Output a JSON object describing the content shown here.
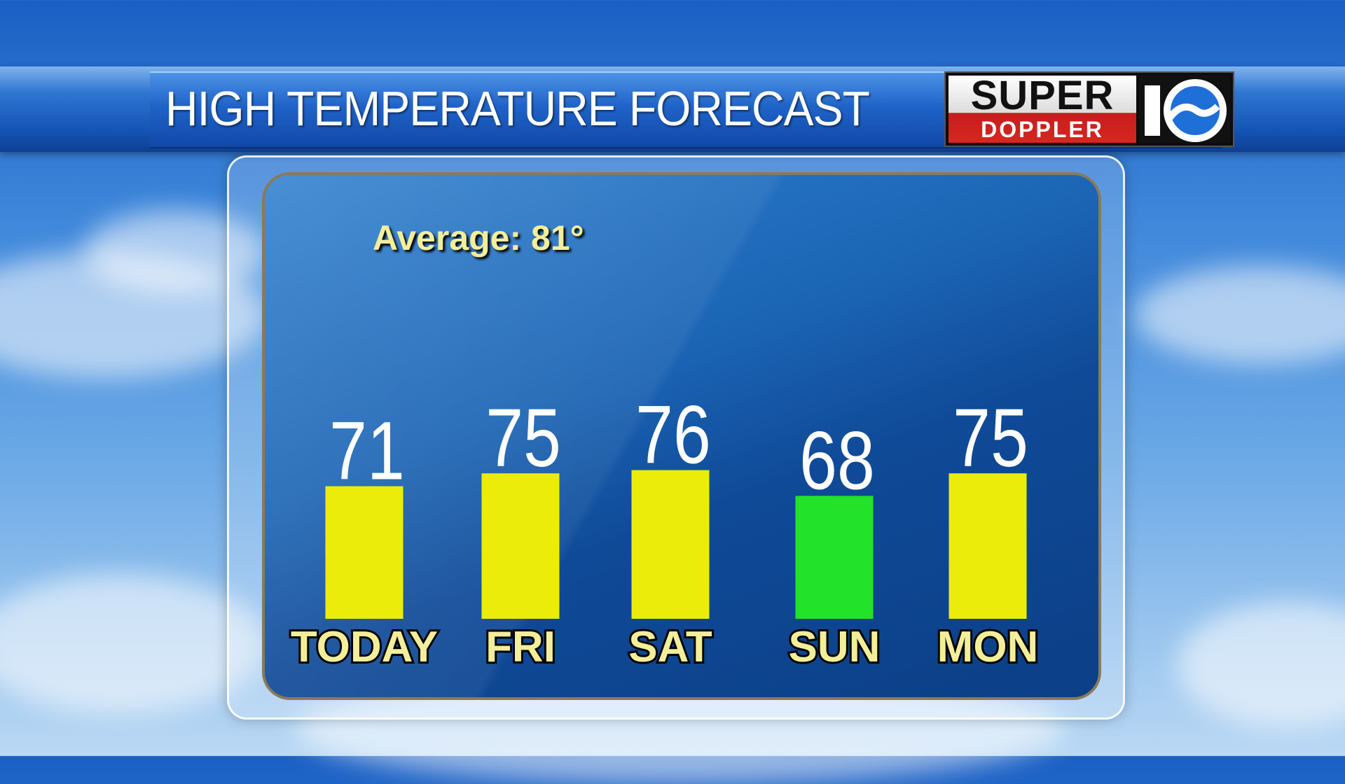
{
  "header": {
    "title": "HIGH TEMPERATURE FORECAST"
  },
  "logo": {
    "line1": "SUPER",
    "line2": "DOPPLER",
    "channel": "10"
  },
  "chart_data": {
    "type": "bar",
    "title": "HIGH TEMPERATURE FORECAST",
    "annotation": "Average: 81°",
    "categories": [
      "TODAY",
      "FRI",
      "SAT",
      "SUN",
      "MON"
    ],
    "values": [
      71,
      75,
      76,
      68,
      75
    ],
    "bar_colors": [
      "#ecec0b",
      "#ecec0b",
      "#ecec0b",
      "#22e32a",
      "#ecec0b"
    ],
    "label_color": "#f2ee9a",
    "value_color": "#ffffff",
    "xlabel": "",
    "ylabel": "",
    "grid": false,
    "legend": "none"
  }
}
